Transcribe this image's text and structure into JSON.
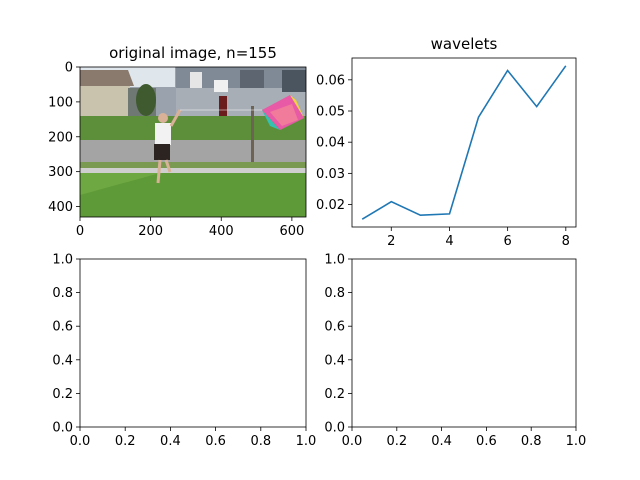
{
  "chart_data": [
    {
      "type": "image",
      "title": "original image, n=155",
      "xticks": [
        0,
        200,
        400,
        600
      ],
      "yticks": [
        0,
        100,
        200,
        300,
        400
      ],
      "xlim": [
        0,
        640
      ],
      "ylim": [
        430,
        0
      ],
      "image_content": "photo"
    },
    {
      "type": "line",
      "title": "wavelets",
      "x": [
        1,
        2,
        3,
        4,
        5,
        6,
        7,
        8
      ],
      "series": [
        {
          "values": [
            0.0153,
            0.0209,
            0.0166,
            0.017,
            0.048,
            0.063,
            0.0514,
            0.0645
          ],
          "color": "#1f77b4"
        }
      ],
      "xlim": [
        0.65,
        8.35
      ],
      "ylim": [
        0.0128,
        0.067
      ],
      "xticks": [
        2,
        4,
        6,
        8
      ],
      "yticks": [
        0.02,
        0.03,
        0.04,
        0.05,
        0.06
      ],
      "ytick_labels": [
        "0.02",
        "0.03",
        "0.04",
        "0.05",
        "0.06"
      ]
    },
    {
      "type": "empty",
      "xlim": [
        0,
        1
      ],
      "ylim": [
        0,
        1
      ],
      "xticks": [
        0.0,
        0.2,
        0.4,
        0.6,
        0.8,
        1.0
      ],
      "yticks": [
        0.0,
        0.2,
        0.4,
        0.6,
        0.8,
        1.0
      ],
      "xtick_labels": [
        "0.0",
        "0.2",
        "0.4",
        "0.6",
        "0.8",
        "1.0"
      ],
      "ytick_labels": [
        "0.0",
        "0.2",
        "0.4",
        "0.6",
        "0.8",
        "1.0"
      ]
    },
    {
      "type": "empty",
      "xlim": [
        0,
        1
      ],
      "ylim": [
        0,
        1
      ],
      "xticks": [
        0.0,
        0.2,
        0.4,
        0.6,
        0.8,
        1.0
      ],
      "yticks": [
        0.0,
        0.2,
        0.4,
        0.6,
        0.8,
        1.0
      ],
      "xtick_labels": [
        "0.0",
        "0.2",
        "0.4",
        "0.6",
        "0.8",
        "1.0"
      ],
      "ytick_labels": [
        "0.0",
        "0.2",
        "0.4",
        "0.6",
        "0.8",
        "1.0"
      ]
    }
  ]
}
